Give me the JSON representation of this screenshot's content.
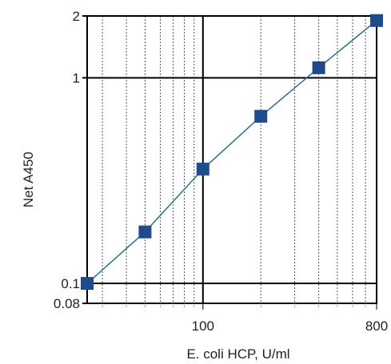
{
  "chart_data": {
    "type": "line",
    "title": "",
    "xlabel": "E. coli HCP, U/ml",
    "ylabel": "Net A450",
    "x_scale": "log",
    "y_scale": "log",
    "xlim": [
      25,
      800
    ],
    "ylim": [
      0.08,
      2
    ],
    "x_ticks": [
      {
        "value": 100,
        "label": "100"
      },
      {
        "value": 800,
        "label": "800"
      }
    ],
    "y_ticks": [
      {
        "value": 2,
        "label": "2"
      },
      {
        "value": 1,
        "label": "1"
      },
      {
        "value": 0.1,
        "label": "0.1"
      },
      {
        "value": 0.08,
        "label": "0.08"
      }
    ],
    "grid": true,
    "series": [
      {
        "x": [
          25,
          50,
          100,
          200,
          400,
          800
        ],
        "y": [
          0.1,
          0.178,
          0.36,
          0.65,
          1.12,
          1.9
        ]
      }
    ],
    "colors": {
      "line": "#2a6f8f",
      "marker": "#1f4a8c",
      "major_grid": "#000000",
      "minor_grid": "#555555"
    }
  }
}
